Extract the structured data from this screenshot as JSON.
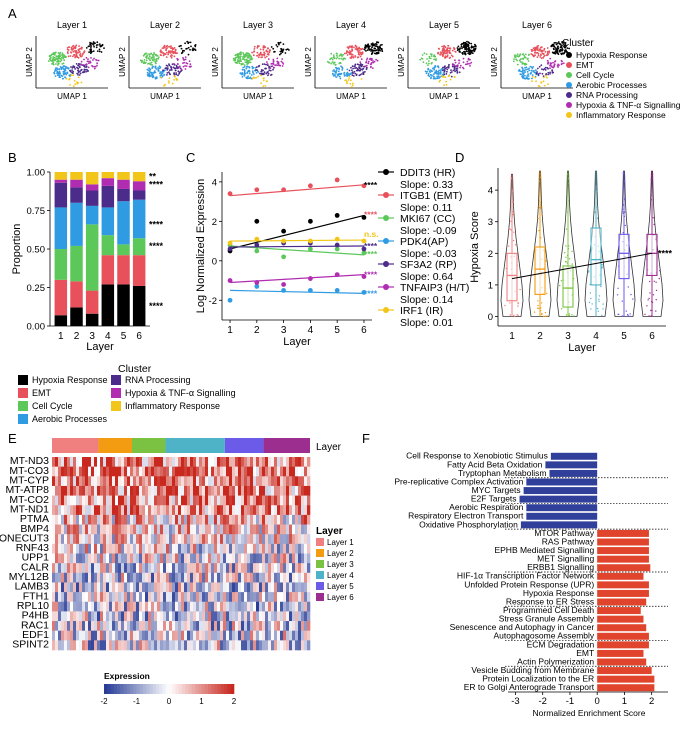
{
  "panel_letters": [
    "A",
    "B",
    "C",
    "D",
    "E",
    "F"
  ],
  "colors": {
    "hypoxia": "#000000",
    "emt": "#e8505b",
    "cell_cycle": "#5cc85a",
    "aerobic": "#2f9be3",
    "rna": "#4b2c8a",
    "hypoxia_tnf": "#b02cb0",
    "inflammatory": "#f2c619",
    "layer1": "#f08080",
    "layer2": "#f39c12",
    "layer3": "#7cc242",
    "layer4": "#4fb3c7",
    "layer5": "#6b5be8",
    "layer6": "#9b2e8f",
    "down": "#2f3f9a",
    "up": "#e0442c"
  },
  "panelA": {
    "layers": [
      "Layer 1",
      "Layer 2",
      "Layer 3",
      "Layer 4",
      "Layer 5",
      "Layer 6"
    ],
    "xlabel": "UMAP 1",
    "ylabel": "UMAP 2",
    "legend_title": "Cluster",
    "clusters": [
      "Hypoxia Response",
      "EMT",
      "Cell Cycle",
      "Aerobic Processes",
      "RNA Processing",
      "Hypoxia & TNF-α Signalling",
      "Inflammatory Response"
    ]
  },
  "panelB": {
    "legend_title": "Cluster",
    "legend_items": [
      "Hypoxia Response",
      "EMT",
      "Cell Cycle",
      "Aerobic Processes",
      "RNA Processing",
      "Hypoxia & TNF-α Signalling",
      "Inflammatory Response"
    ]
  },
  "panelE": {
    "legend_layer_title": "Layer",
    "layers": [
      "Layer 1",
      "Layer 2",
      "Layer 3",
      "Layer 4",
      "Layer 5",
      "Layer 6"
    ],
    "top_label": "Layer",
    "genes": [
      "MT-ND3",
      "MT-CO3",
      "MT-CYP",
      "MT-ATP8",
      "MT-CO2",
      "MT-ND1",
      "PTMA",
      "BMP4",
      "ONECUT3",
      "RNF43",
      "UPP1",
      "CALR",
      "MYL12B",
      "LAMB3",
      "FTH1",
      "RPL10",
      "P4HB",
      "RAC1",
      "EDF1",
      "SPINT2"
    ],
    "expression_title": "Expression",
    "expression_ticks": [
      "-2",
      "-1",
      "0",
      "1",
      "2"
    ]
  },
  "chart_data": [
    {
      "id": "B",
      "type": "bar",
      "categories": [
        "1",
        "2",
        "3",
        "4",
        "5",
        "6"
      ],
      "xlabel": "Layer",
      "ylabel": "Proportion",
      "ylim": [
        0,
        1
      ],
      "yticks": [
        "0.00",
        "0.25",
        "0.50",
        "0.75",
        "1.00"
      ],
      "series": [
        {
          "name": "Hypoxia Response",
          "values": [
            0.07,
            0.12,
            0.08,
            0.27,
            0.27,
            0.26
          ]
        },
        {
          "name": "EMT",
          "values": [
            0.23,
            0.17,
            0.15,
            0.19,
            0.19,
            0.2
          ]
        },
        {
          "name": "Cell Cycle",
          "values": [
            0.2,
            0.23,
            0.43,
            0.13,
            0.07,
            0.11
          ]
        },
        {
          "name": "Aerobic Processes",
          "values": [
            0.27,
            0.28,
            0.12,
            0.18,
            0.28,
            0.25
          ]
        },
        {
          "name": "RNA Processing",
          "values": [
            0.16,
            0.1,
            0.1,
            0.14,
            0.08,
            0.06
          ]
        },
        {
          "name": "Hypoxia & TNF-α Signalling",
          "values": [
            0.02,
            0.05,
            0.04,
            0.05,
            0.06,
            0.06
          ]
        },
        {
          "name": "Inflammatory Response",
          "values": [
            0.05,
            0.05,
            0.08,
            0.04,
            0.05,
            0.06
          ]
        }
      ],
      "annotations": [
        {
          "label": "**",
          "y": 0.97
        },
        {
          "label": "****",
          "y": 0.92
        },
        {
          "label": "****",
          "y": 0.66
        },
        {
          "label": "****",
          "y": 0.52
        },
        {
          "label": "****",
          "y": 0.13
        }
      ]
    },
    {
      "id": "C",
      "type": "scatter",
      "x": [
        1,
        2,
        3,
        4,
        5,
        6
      ],
      "xlabel": "Layer",
      "ylabel": "Log Normalized Expression",
      "xlim": [
        0.7,
        6.3
      ],
      "ylim": [
        -3,
        4.5
      ],
      "yticks": [
        "-2",
        "0",
        "2",
        "4"
      ],
      "series": [
        {
          "name": "DDIT3 (HR)",
          "slope": "Slope: 0.33",
          "values": [
            0.5,
            2.0,
            1.5,
            2.0,
            2.3,
            2.2
          ],
          "fit": [
            0.6,
            2.3
          ],
          "sig": "****"
        },
        {
          "name": "ITGB1 (EMT)",
          "slope": "Slope: 0.11",
          "values": [
            3.4,
            3.6,
            3.6,
            3.8,
            4.1,
            3.8
          ],
          "fit": [
            3.3,
            3.85
          ],
          "sig": "****"
        },
        {
          "name": "MKI67 (CC)",
          "slope": "Slope: -0.09",
          "values": [
            0.8,
            0.5,
            0.2,
            0.6,
            0.6,
            0.4
          ],
          "fit": [
            0.75,
            0.3
          ],
          "sig": "****"
        },
        {
          "name": "PDK4(AP)",
          "slope": "Slope: -0.03",
          "values": [
            -2.0,
            -1.3,
            -1.5,
            -1.5,
            -1.5,
            -1.6
          ],
          "fit": [
            -1.5,
            -1.65
          ],
          "sig": "****"
        },
        {
          "name": "SF3A2 (RP)",
          "slope": "Slope: 0.64",
          "values": [
            0.6,
            0.8,
            0.9,
            0.9,
            0.8,
            0.6
          ],
          "fit": [
            0.7,
            0.75
          ],
          "sig": "****"
        },
        {
          "name": "TNFAIP3 (H/T)",
          "slope": "Slope: 0.14",
          "values": [
            -1.0,
            -1.1,
            -1.2,
            -0.9,
            -0.7,
            -0.8
          ],
          "fit": [
            -1.1,
            -0.7
          ],
          "sig": "****"
        },
        {
          "name": "IRF1 (IR)",
          "slope": "Slope: 0.01",
          "values": [
            0.9,
            1.1,
            1.0,
            1.0,
            1.1,
            1.0
          ],
          "fit": [
            1.0,
            1.05
          ],
          "sig": "n.s."
        }
      ]
    },
    {
      "id": "D",
      "type": "box",
      "categories": [
        "1",
        "2",
        "3",
        "4",
        "5",
        "6"
      ],
      "xlabel": "Layer",
      "ylabel": "Hypoxia Score",
      "ylim": [
        -0.3,
        4.7
      ],
      "yticks": [
        "0",
        "1",
        "2",
        "3",
        "4"
      ],
      "box": [
        {
          "min": 0.0,
          "q1": 0.5,
          "median": 1.3,
          "q3": 2.0,
          "max": 4.5
        },
        {
          "min": 0.0,
          "q1": 0.7,
          "median": 1.5,
          "q3": 2.2,
          "max": 4.6
        },
        {
          "min": 0.0,
          "q1": 0.3,
          "median": 0.9,
          "q3": 1.6,
          "max": 4.6
        },
        {
          "min": 0.0,
          "q1": 1.0,
          "median": 1.8,
          "q3": 2.8,
          "max": 4.6
        },
        {
          "min": 0.0,
          "q1": 1.2,
          "median": 2.0,
          "q3": 2.6,
          "max": 4.6
        },
        {
          "min": 0.0,
          "q1": 1.3,
          "median": 2.0,
          "q3": 2.6,
          "max": 4.6
        }
      ],
      "trend": [
        1.2,
        2.0
      ],
      "annotation": "****"
    },
    {
      "id": "F",
      "type": "bar",
      "orientation": "horizontal",
      "xlabel": "Normalized Enrichment Score",
      "xlim": [
        -3.2,
        2.6
      ],
      "xticks": [
        "-3",
        "-2",
        "-1",
        "0",
        "1",
        "2"
      ],
      "categories": [
        "Cell Response to Xenobiotic Stimulus",
        "Fatty Acid Beta Oxidation",
        "Tryptophan Metabolism",
        "Pre-replicative Complex Activation",
        "MYC Targets",
        "E2F Targets",
        "Aerobic Respiration",
        "Respiratory Electron Transport",
        "Oxidative Phosphorylation",
        "MTOR Pathway",
        "RAS Pathway",
        "EPHB Mediated Signalling",
        "MET Signalling",
        "ERBB1 Signalling",
        "HIF-1α Transcription Factor Network",
        "Unfolded Protein Response (UPR)",
        "Hypoxia Response",
        "Response to ER Stress",
        "Programmed Cell Death",
        "Stress Granule Assembly",
        "Senescence and Autophagy in Cancer",
        "Autophagosome Assembly",
        "ECM Degradation",
        "EMT",
        "Actin Polymerization",
        "Vesicle Budding from Membrane",
        "Protein Localization to the ER",
        "ER to Golgi Anterograde Transport"
      ],
      "values": [
        -1.7,
        -1.9,
        -1.75,
        -2.6,
        -2.7,
        -2.85,
        -2.6,
        -2.6,
        -2.8,
        1.9,
        1.9,
        1.9,
        1.9,
        1.95,
        1.7,
        1.9,
        1.9,
        1.8,
        1.6,
        1.7,
        1.8,
        1.9,
        1.9,
        1.7,
        1.8,
        2.0,
        2.1,
        2.1
      ],
      "separators_after": [
        2,
        5,
        8,
        13,
        17,
        21,
        24
      ]
    }
  ]
}
